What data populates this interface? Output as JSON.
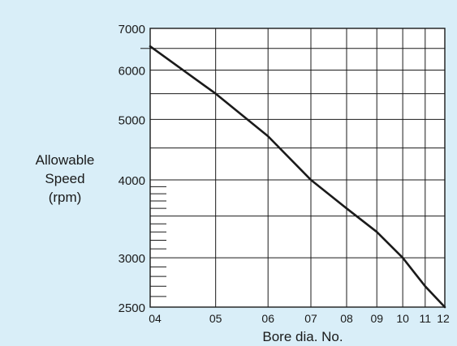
{
  "chart_data": {
    "type": "line",
    "title": "",
    "xlabel": "Bore dia. No.",
    "ylabel_lines": [
      "Allowable",
      "Speed",
      "(rpm)"
    ],
    "y_scale": "log",
    "ylim": [
      2500,
      7000
    ],
    "y_ticks": [
      {
        "value": 2500,
        "label": "2500"
      },
      {
        "value": 3000,
        "label": "3000"
      },
      {
        "value": 4000,
        "label": "4000"
      },
      {
        "value": 5000,
        "label": "5000"
      },
      {
        "value": 6000,
        "label": "6000"
      },
      {
        "value": 7000,
        "label": "7000"
      }
    ],
    "x_ticks": [
      "04",
      "05",
      "06",
      "07",
      "08",
      "09",
      "10",
      "11",
      "12"
    ],
    "grid": true,
    "colors": {
      "background": "#d9eef8",
      "plot": "#ffffff",
      "line": "#1a1a1a"
    },
    "series": [
      {
        "points": [
          {
            "x": "04",
            "y": 6550
          },
          {
            "x": "05",
            "y": 5500
          },
          {
            "x": "06",
            "y": 4700
          },
          {
            "x": "07",
            "y": 4000
          },
          {
            "x": "08",
            "y": 3600
          },
          {
            "x": "09",
            "y": 3300
          },
          {
            "x": "10",
            "y": 3000
          },
          {
            "x": "11",
            "y": 2700
          },
          {
            "x": "12",
            "y": 2500
          }
        ]
      }
    ]
  }
}
